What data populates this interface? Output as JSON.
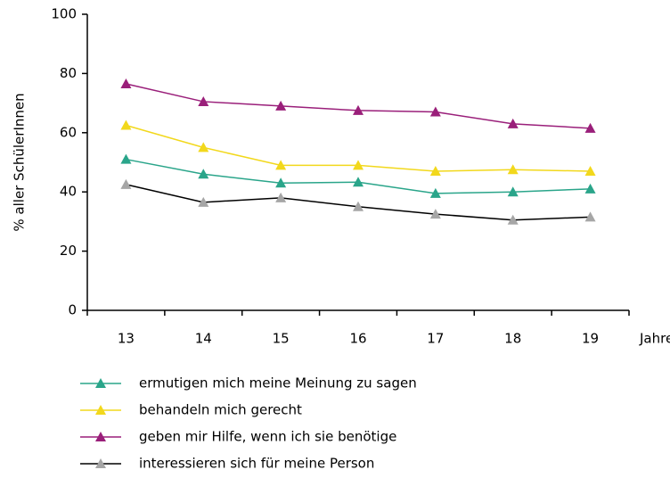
{
  "chart_data": {
    "type": "line",
    "y_label": "% aller SchülerInnen",
    "x_label": "Jahre",
    "categories": [
      "13",
      "14",
      "15",
      "16",
      "17",
      "18",
      "19"
    ],
    "series": [
      {
        "name": "ermutigen mich meine Meinung zu sagen",
        "color": "#2aa58a",
        "marker_color": "#2aa58a",
        "values": [
          51,
          46,
          43,
          43.3,
          39.5,
          40,
          41
        ]
      },
      {
        "name": "behandeln mich gerecht",
        "color": "#f2d81c",
        "marker_color": "#f2d81c",
        "values": [
          62.5,
          55,
          49,
          49,
          47,
          47.5,
          47
        ]
      },
      {
        "name": "geben mir Hilfe, wenn ich sie benötige",
        "color": "#9a1f7a",
        "marker_color": "#9a1f7a",
        "values": [
          76.5,
          70.5,
          69,
          67.5,
          67,
          63,
          61.5
        ]
      },
      {
        "name": "interessieren sich  für meine Person",
        "color": "#000000",
        "marker_color": "#a6a6a6",
        "values": [
          42.5,
          36.5,
          38,
          35,
          32.5,
          30.5,
          31.5
        ]
      }
    ],
    "ylim": [
      0,
      100
    ],
    "yticks": [
      0,
      20,
      40,
      60,
      80,
      100
    ]
  }
}
